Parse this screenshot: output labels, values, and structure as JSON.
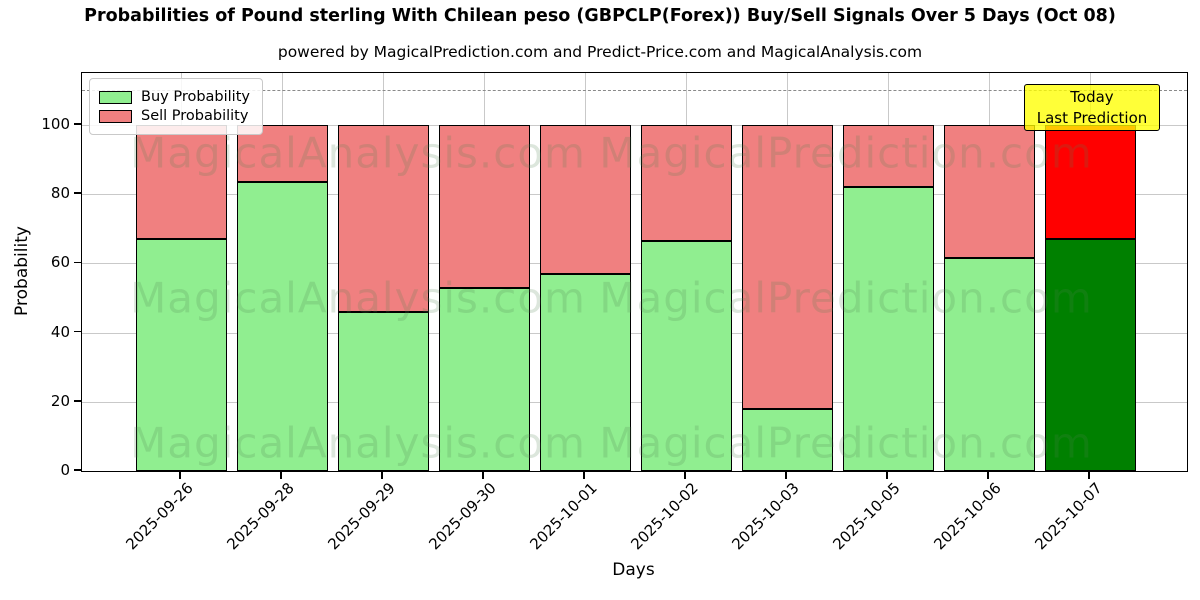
{
  "header": {
    "title": "Probabilities of Pound sterling With Chilean peso (GBPCLP(Forex)) Buy/Sell Signals Over 5 Days (Oct 08)",
    "subtitle": "powered by MagicalPrediction.com and Predict-Price.com and MagicalAnalysis.com"
  },
  "annotation": {
    "line1": "Today",
    "line2": "Last Prediction",
    "bg_color": "#FFFF00"
  },
  "watermarks": {
    "left_text": "MagicalAnalysis.com",
    "right_text": "MagicalPrediction.com"
  },
  "chart_data": {
    "type": "bar",
    "stacked": true,
    "title": "Probabilities of Pound sterling With Chilean peso (GBPCLP(Forex)) Buy/Sell Signals Over 5 Days (Oct 08)",
    "subtitle": "powered by MagicalPrediction.com and Predict-Price.com and MagicalAnalysis.com",
    "xlabel": "Days",
    "ylabel": "Probability",
    "categories": [
      "2025-09-26",
      "2025-09-28",
      "2025-09-29",
      "2025-09-30",
      "2025-10-01",
      "2025-10-02",
      "2025-10-03",
      "2025-10-05",
      "2025-10-06",
      "2025-10-07"
    ],
    "series": [
      {
        "name": "Buy Probability",
        "values": [
          67,
          83.5,
          46,
          53,
          57,
          66.5,
          18,
          82,
          61.5,
          67
        ],
        "color": "#90EE90",
        "last_bar_color": "#008000"
      },
      {
        "name": "Sell Probability",
        "values": [
          33,
          16.5,
          54,
          47,
          43,
          33.5,
          82,
          18,
          38.5,
          33
        ],
        "color": "#F08080",
        "last_bar_color": "#FF0000"
      }
    ],
    "yticks": [
      0,
      20,
      40,
      60,
      80,
      100
    ],
    "ylim": [
      0,
      115
    ],
    "dashed_reference_line_y": 110,
    "grid": true,
    "legend_position": "upper-left",
    "bar_edge_color": "#000000",
    "gridline_color": "#c9c9c9",
    "dashed_line_color": "#8a8a8a"
  }
}
